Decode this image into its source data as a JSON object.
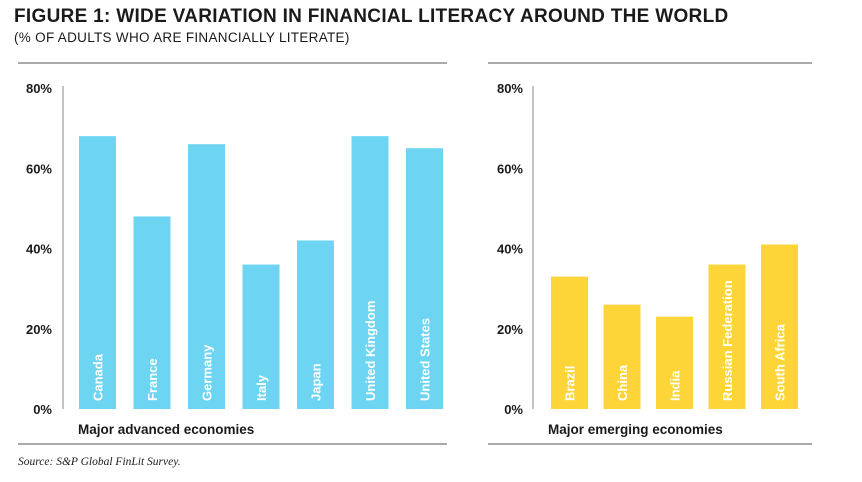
{
  "figure": {
    "title": "FIGURE 1: WIDE VARIATION IN FINANCIAL LITERACY AROUND THE WORLD",
    "subtitle": "(% OF ADULTS WHO ARE FINANCIALLY LITERATE)",
    "source": "Source: S&P Global FinLit Survey."
  },
  "chart_data": [
    {
      "type": "bar",
      "title": "",
      "xlabel": "Major advanced economies",
      "ylabel": "",
      "ylim": [
        0,
        80
      ],
      "yticks": [
        0,
        20,
        40,
        60,
        80
      ],
      "ytick_labels": [
        "0%",
        "20%",
        "40%",
        "60%",
        "80%"
      ],
      "grid": false,
      "color": "#6dd5f2",
      "categories": [
        "Canada",
        "France",
        "Germany",
        "Italy",
        "Japan",
        "United Kingdom",
        "United States"
      ],
      "values": [
        68,
        48,
        66,
        36,
        42,
        68,
        65
      ]
    },
    {
      "type": "bar",
      "title": "",
      "xlabel": "Major emerging economies",
      "ylabel": "",
      "ylim": [
        0,
        80
      ],
      "yticks": [
        0,
        20,
        40,
        60,
        80
      ],
      "ytick_labels": [
        "0%",
        "20%",
        "40%",
        "60%",
        "80%"
      ],
      "grid": false,
      "color": "#fed538",
      "categories": [
        "Brazil",
        "China",
        "India",
        "Russian Federation",
        "South Africa"
      ],
      "values": [
        33,
        26,
        23,
        36,
        41
      ]
    }
  ]
}
